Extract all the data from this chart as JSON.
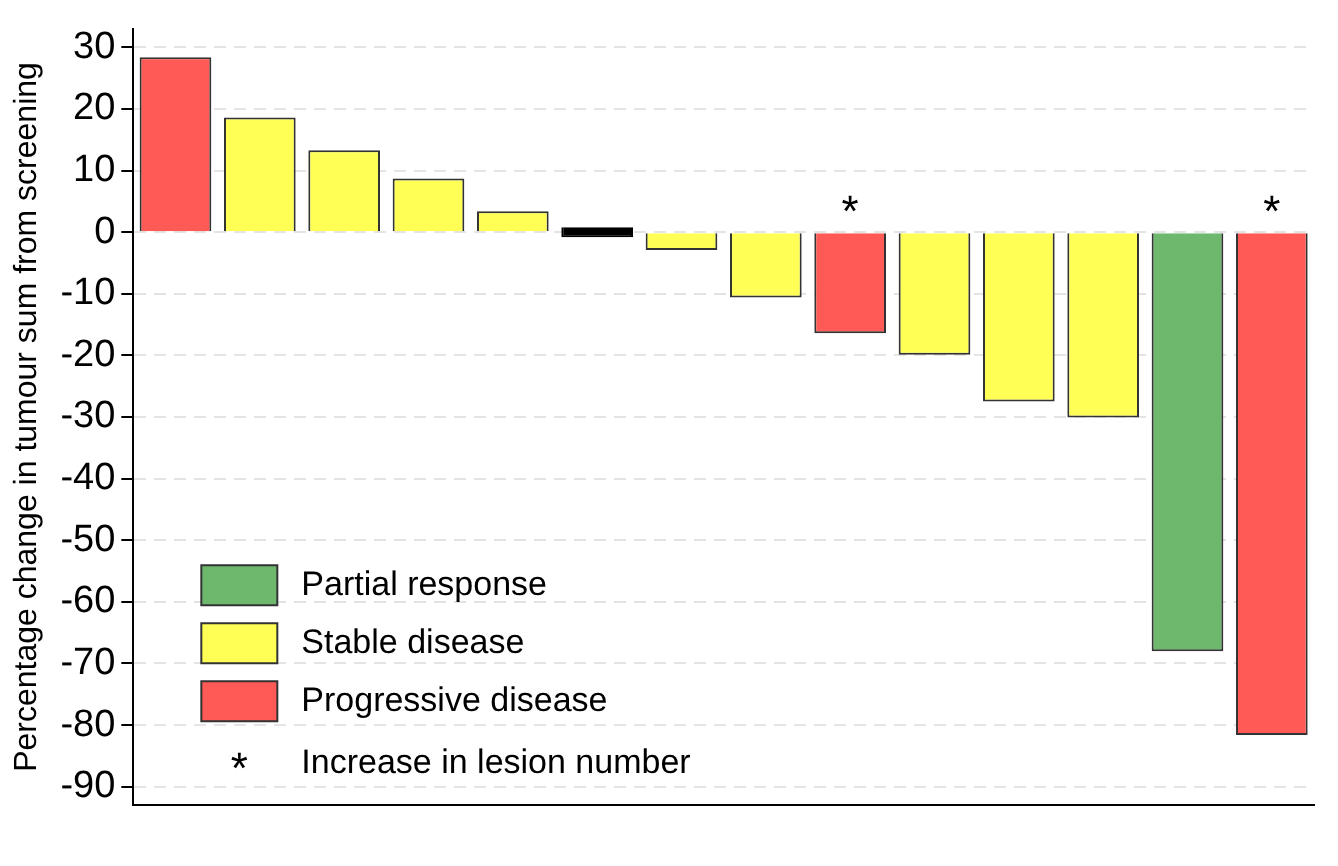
{
  "chart_data": {
    "type": "bar",
    "ylabel": "Percentage change in tumour sum from screening",
    "categories": [
      null,
      null,
      null,
      null,
      null,
      null,
      null,
      null,
      null,
      null,
      null,
      null,
      null,
      null
    ],
    "stacked": true,
    "series": [
      {
        "name": "Partial response",
        "color": "#6db86d",
        "values": [
          null,
          null,
          null,
          null,
          null,
          null,
          null,
          null,
          null,
          null,
          null,
          null,
          -68,
          null
        ]
      },
      {
        "name": "Stable disease",
        "color": "#ffff55",
        "values": [
          null,
          18.6,
          13.3,
          8.7,
          3.4,
          null,
          -2.9,
          -10.6,
          null,
          -19.9,
          -27.5,
          -30.1,
          null,
          null
        ]
      },
      {
        "name": "Progressive disease",
        "color": "#ff5a55",
        "values": [
          28.4,
          null,
          null,
          null,
          null,
          null,
          null,
          null,
          -16.4,
          null,
          null,
          null,
          null,
          -81.6
        ],
        "value_labels": [
          null,
          null,
          null,
          null,
          null,
          null,
          null,
          null,
          "*",
          null,
          null,
          null,
          null,
          "*"
        ]
      },
      {
        "color": "#000000",
        "values": [
          null,
          null,
          null,
          null,
          null,
          0,
          null,
          null,
          null,
          null,
          null,
          null,
          null,
          null
        ]
      }
    ],
    "ylim": [
      -93,
      33
    ],
    "yticks": [
      -90,
      -80,
      -70,
      -60,
      -50,
      -40,
      -30,
      -20,
      -10,
      0,
      10,
      20,
      30
    ],
    "grid": "y",
    "legend": "bottom left",
    "annotations": [
      "* Increase in lesion number"
    ]
  }
}
